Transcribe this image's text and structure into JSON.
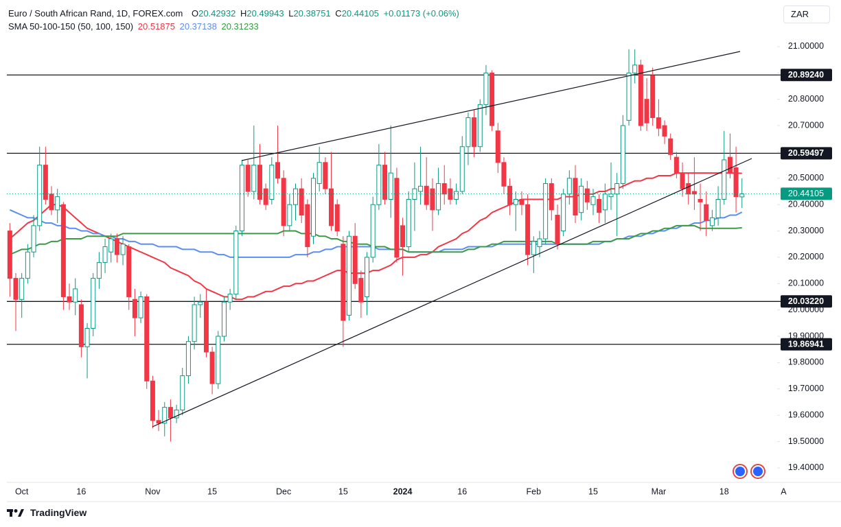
{
  "chart_data": {
    "type": "candlestick",
    "title": "Euro / South African Rand, 1D, FOREX.com",
    "ohlc_labels": [
      "O",
      "H",
      "L",
      "C"
    ],
    "change": "+0.01173 (+0.06%)",
    "indicator_label": "SMA 50-100-150 (50, 100, 150)",
    "currency": "ZAR",
    "footer": "TradingView",
    "categories": [
      null,
      null,
      "Oct",
      null,
      null,
      null,
      null,
      null,
      null,
      null,
      null,
      null,
      "16",
      null,
      null,
      null,
      null,
      null,
      null,
      null,
      null,
      null,
      null,
      null,
      "Nov",
      null,
      null,
      null,
      null,
      null,
      null,
      null,
      null,
      null,
      "15",
      null,
      null,
      null,
      null,
      null,
      null,
      null,
      null,
      null,
      null,
      null,
      "Dec",
      null,
      null,
      null,
      null,
      null,
      null,
      null,
      null,
      null,
      "15",
      null,
      null,
      null,
      null,
      null,
      null,
      null,
      null,
      null,
      "2024",
      null,
      null,
      null,
      null,
      null,
      null,
      null,
      null,
      null,
      "16",
      null,
      null,
      null,
      null,
      null,
      null,
      null,
      null,
      null,
      null,
      null,
      "Feb",
      null,
      null,
      null,
      null,
      null,
      null,
      null,
      null,
      null,
      "15",
      null,
      null,
      null,
      null,
      null,
      null,
      null,
      null,
      null,
      null,
      "Mar",
      null,
      null,
      null,
      null,
      null,
      null,
      null,
      null,
      null,
      null,
      "18",
      null,
      null,
      null,
      null,
      null,
      null,
      null,
      null,
      null,
      "A"
    ],
    "open": [
      20.3,
      20.12,
      20.04,
      20.12,
      20.22,
      20.32,
      20.55,
      20.44,
      20.38,
      20.4,
      20.05,
      20.03,
      20.02,
      19.86,
      19.93,
      20.12,
      20.18,
      20.22,
      20.27,
      20.21,
      20.24,
      20.04,
      19.97,
      20.05,
      19.73,
      19.58,
      19.57,
      19.63,
      19.59,
      19.62,
      19.75,
      19.88,
      20.02,
      20.03,
      19.84,
      19.72,
      19.9,
      20.03,
      20.06,
      20.3,
      20.55,
      20.45,
      20.55,
      20.46,
      20.42,
      20.56,
      20.5,
      20.32,
      20.4,
      20.46,
      20.4,
      20.28,
      20.48,
      20.56,
      20.46,
      20.4,
      20.25,
      19.98,
      20.28,
      20.12,
      20.05,
      20.2,
      20.4,
      20.55,
      20.42,
      20.5,
      20.32,
      20.24,
      20.42,
      20.45,
      20.47,
      20.46,
      20.38,
      20.48,
      20.46,
      20.42,
      20.45,
      20.62,
      20.73,
      20.62,
      20.78,
      20.9,
      20.68,
      20.56,
      20.47,
      20.4,
      20.42,
      20.4,
      20.21,
      20.24,
      20.27,
      20.48,
      20.36,
      20.3,
      20.44,
      20.5,
      20.37,
      20.46,
      20.4,
      20.42,
      20.38,
      20.43,
      20.44,
      20.48,
      20.72,
      20.9,
      20.93,
      20.8,
      20.89,
      20.73,
      20.7,
      20.65,
      20.58,
      20.52,
      20.48,
      20.45,
      20.42,
      20.4,
      20.32,
      20.35,
      20.42,
      20.58,
      20.54,
      20.42932,
      null,
      null,
      null,
      null,
      null,
      null,
      null
    ],
    "high": [
      20.33,
      20.14,
      20.14,
      20.25,
      20.36,
      20.62,
      20.62,
      20.47,
      20.46,
      20.41,
      20.1,
      20.12,
      20.04,
      19.95,
      20.14,
      20.22,
      20.27,
      20.29,
      20.29,
      20.28,
      20.25,
      20.08,
      20.07,
      20.06,
      19.75,
      19.62,
      19.65,
      19.66,
      19.64,
      19.78,
      19.9,
      20.05,
      20.06,
      20.08,
      19.86,
      19.92,
      20.05,
      20.08,
      20.32,
      20.57,
      20.57,
      20.7,
      20.63,
      20.48,
      20.58,
      20.7,
      20.53,
      20.44,
      20.48,
      20.5,
      20.42,
      20.52,
      20.62,
      20.58,
      20.6,
      20.42,
      20.28,
      20.3,
      20.33,
      20.15,
      20.22,
      20.43,
      20.63,
      20.6,
      20.7,
      20.54,
      20.35,
      20.45,
      20.56,
      20.62,
      20.58,
      20.5,
      20.54,
      20.55,
      20.5,
      20.48,
      20.66,
      20.75,
      20.76,
      20.8,
      20.93,
      20.91,
      20.71,
      20.58,
      20.5,
      20.45,
      20.45,
      20.44,
      20.28,
      20.3,
      20.5,
      20.5,
      20.4,
      20.46,
      20.53,
      20.55,
      20.5,
      20.49,
      20.46,
      20.44,
      20.48,
      20.56,
      20.52,
      20.74,
      20.99,
      20.99,
      20.95,
      20.88,
      20.92,
      20.8,
      20.72,
      20.67,
      20.6,
      20.56,
      20.52,
      20.58,
      20.48,
      20.45,
      20.38,
      20.47,
      20.68,
      20.67,
      20.62,
      20.49943,
      null,
      null,
      null,
      null,
      null,
      null,
      null
    ],
    "low": [
      20.05,
      19.92,
      19.97,
      20.1,
      20.2,
      20.3,
      20.4,
      20.36,
      20.33,
      20.0,
      20.0,
      19.98,
      19.82,
      19.74,
      19.9,
      20.08,
      20.14,
      20.18,
      20.18,
      20.17,
      20.0,
      19.9,
      19.95,
      19.7,
      19.55,
      19.54,
      19.52,
      19.5,
      19.57,
      19.6,
      19.72,
      19.85,
      19.97,
      19.82,
      19.68,
      19.7,
      19.88,
      20.0,
      20.04,
      20.28,
      20.43,
      20.42,
      20.4,
      20.38,
      20.4,
      20.48,
      20.28,
      20.3,
      20.34,
      20.33,
      20.2,
      20.25,
      20.45,
      20.44,
      20.3,
      20.28,
      19.86,
      19.96,
      20.08,
      19.97,
      19.98,
      20.18,
      20.38,
      20.4,
      20.35,
      20.18,
      20.13,
      20.22,
      20.3,
      20.4,
      20.38,
      20.3,
      20.36,
      20.4,
      20.4,
      20.4,
      20.44,
      20.55,
      20.58,
      20.6,
      20.74,
      20.68,
      20.52,
      20.44,
      20.36,
      20.3,
      20.36,
      20.17,
      20.14,
      20.2,
      20.25,
      20.34,
      20.23,
      20.28,
      20.4,
      20.33,
      20.34,
      20.38,
      20.36,
      20.33,
      20.33,
      20.38,
      20.28,
      20.46,
      20.7,
      20.86,
      20.68,
      20.68,
      20.7,
      20.66,
      20.63,
      20.57,
      20.5,
      20.43,
      20.4,
      20.38,
      20.3,
      20.28,
      20.3,
      20.32,
      20.4,
      20.5,
      20.37,
      20.38751,
      null,
      null,
      null,
      null,
      null,
      null,
      null
    ],
    "close": [
      20.12,
      20.04,
      20.12,
      20.22,
      20.32,
      20.55,
      20.42,
      20.38,
      20.43,
      20.05,
      20.03,
      20.08,
      19.86,
      19.93,
      20.12,
      20.18,
      20.24,
      20.27,
      20.21,
      20.25,
      20.05,
      19.97,
      20.05,
      19.73,
      19.58,
      19.57,
      19.63,
      19.59,
      19.62,
      19.75,
      19.88,
      20.02,
      20.03,
      19.84,
      19.72,
      19.9,
      20.03,
      20.06,
      20.3,
      20.55,
      20.45,
      20.55,
      20.42,
      20.4,
      20.55,
      20.5,
      20.32,
      20.4,
      20.46,
      20.36,
      20.24,
      20.5,
      20.56,
      20.46,
      20.32,
      20.3,
      19.96,
      20.28,
      20.1,
      20.03,
      20.2,
      20.4,
      20.55,
      20.42,
      20.52,
      20.2,
      20.24,
      20.42,
      20.46,
      20.47,
      20.4,
      20.38,
      20.48,
      20.44,
      20.42,
      20.45,
      20.62,
      20.73,
      20.62,
      20.78,
      20.9,
      20.7,
      20.56,
      20.47,
      20.4,
      20.42,
      20.4,
      20.21,
      20.26,
      20.27,
      20.48,
      20.38,
      20.25,
      20.44,
      20.5,
      20.36,
      20.47,
      20.41,
      20.43,
      20.37,
      20.44,
      20.44,
      20.48,
      20.7,
      20.9,
      20.93,
      20.7,
      20.71,
      20.73,
      20.69,
      20.66,
      20.59,
      20.52,
      20.46,
      20.44,
      20.44,
      20.41,
      20.34,
      20.35,
      20.42,
      20.57,
      20.52,
      20.43,
      20.44105,
      null,
      null,
      null,
      null,
      null,
      null,
      null
    ],
    "up_color": "#089981",
    "down_color": "#f23645",
    "series": [
      {
        "color": "#f23645",
        "values": [
          20.27,
          20.29,
          20.31,
          20.33,
          20.34,
          20.36,
          20.38,
          20.4,
          20.4,
          20.39,
          20.37,
          20.35,
          20.33,
          20.31,
          20.3,
          20.29,
          20.28,
          20.27,
          20.26,
          20.25,
          20.24,
          20.23,
          20.22,
          20.21,
          20.2,
          20.19,
          20.18,
          20.16,
          20.15,
          20.14,
          20.13,
          20.11,
          20.1,
          20.08,
          20.07,
          20.06,
          20.05,
          20.05,
          20.04,
          20.04,
          20.05,
          20.05,
          20.06,
          20.07,
          20.07,
          20.08,
          20.09,
          20.09,
          20.1,
          20.1,
          20.11,
          20.11,
          20.12,
          20.13,
          20.14,
          20.15,
          20.15,
          20.14,
          20.14,
          20.14,
          20.14,
          20.15,
          20.15,
          20.16,
          20.17,
          20.19,
          20.2,
          20.2,
          20.2,
          20.21,
          20.21,
          20.22,
          20.24,
          20.25,
          20.26,
          20.27,
          20.29,
          20.3,
          20.32,
          20.34,
          20.35,
          20.37,
          20.38,
          20.39,
          20.4,
          20.41,
          20.42,
          20.42,
          20.42,
          20.42,
          20.42,
          20.42,
          20.42,
          20.43,
          20.43,
          20.43,
          20.44,
          20.44,
          20.44,
          20.45,
          20.45,
          20.46,
          20.46,
          20.47,
          20.48,
          20.49,
          20.49,
          20.5,
          20.5,
          20.51,
          20.51,
          20.51,
          20.52,
          20.52,
          20.52,
          20.52,
          20.52,
          20.52,
          20.52,
          20.52,
          20.52,
          20.52,
          20.52,
          20.51875,
          null,
          null,
          null,
          null,
          null,
          null,
          null
        ]
      },
      {
        "color": "#5b8def",
        "values": [
          20.38,
          20.37,
          20.36,
          20.35,
          20.35,
          20.34,
          20.33,
          20.33,
          20.32,
          20.32,
          20.31,
          20.31,
          20.3,
          20.3,
          20.29,
          20.29,
          20.28,
          20.28,
          20.27,
          20.27,
          20.26,
          20.26,
          20.25,
          20.25,
          20.25,
          20.24,
          20.24,
          20.24,
          20.24,
          20.23,
          20.23,
          20.23,
          20.22,
          20.22,
          20.22,
          20.21,
          20.21,
          20.2,
          20.2,
          20.2,
          20.2,
          20.2,
          20.2,
          20.2,
          20.2,
          20.2,
          20.2,
          20.2,
          20.21,
          20.21,
          20.21,
          20.22,
          20.22,
          20.23,
          20.23,
          20.24,
          20.24,
          20.24,
          20.24,
          20.24,
          20.24,
          20.24,
          20.23,
          20.23,
          20.23,
          20.23,
          20.23,
          20.22,
          20.22,
          20.22,
          20.22,
          20.22,
          20.22,
          20.23,
          20.23,
          20.23,
          20.23,
          20.24,
          20.24,
          20.24,
          20.24,
          20.24,
          20.25,
          20.25,
          20.25,
          20.25,
          20.25,
          20.25,
          20.25,
          20.25,
          20.25,
          20.25,
          20.25,
          20.25,
          20.25,
          20.25,
          20.25,
          20.25,
          20.25,
          20.25,
          20.26,
          20.26,
          20.27,
          20.27,
          20.28,
          20.28,
          20.28,
          20.29,
          20.29,
          20.3,
          20.3,
          20.31,
          20.31,
          20.32,
          20.32,
          20.33,
          20.33,
          20.34,
          20.34,
          20.35,
          20.35,
          20.36,
          20.36,
          20.37138,
          null,
          null,
          null,
          null,
          null,
          null,
          null
        ]
      },
      {
        "color": "#3c9a46",
        "values": [
          20.21,
          20.22,
          20.23,
          20.23,
          20.24,
          20.25,
          20.25,
          20.26,
          20.26,
          20.27,
          20.27,
          20.27,
          20.27,
          20.28,
          20.28,
          20.28,
          20.28,
          20.28,
          20.28,
          20.29,
          20.29,
          20.29,
          20.29,
          20.29,
          20.29,
          20.29,
          20.29,
          20.29,
          20.29,
          20.29,
          20.29,
          20.29,
          20.29,
          20.29,
          20.29,
          20.29,
          20.29,
          20.29,
          20.29,
          20.29,
          20.29,
          20.29,
          20.29,
          20.29,
          20.29,
          20.29,
          20.3,
          20.3,
          20.3,
          20.29,
          20.29,
          20.29,
          20.28,
          20.28,
          20.27,
          20.27,
          20.26,
          20.26,
          20.25,
          20.25,
          20.25,
          20.24,
          20.24,
          20.24,
          20.23,
          20.23,
          20.23,
          20.22,
          20.22,
          20.22,
          20.22,
          20.22,
          20.22,
          20.22,
          20.22,
          20.22,
          20.22,
          20.23,
          20.23,
          20.24,
          20.24,
          20.25,
          20.25,
          20.26,
          20.26,
          20.26,
          20.26,
          20.26,
          20.26,
          20.26,
          20.26,
          20.26,
          20.25,
          20.25,
          20.25,
          20.25,
          20.25,
          20.25,
          20.26,
          20.26,
          20.26,
          20.26,
          20.27,
          20.27,
          20.27,
          20.28,
          20.29,
          20.29,
          20.3,
          20.3,
          20.31,
          20.31,
          20.32,
          20.32,
          20.32,
          20.32,
          20.31,
          20.31,
          20.31,
          20.31,
          20.31,
          20.31,
          20.31,
          20.31233,
          null,
          null,
          null,
          null,
          null,
          null,
          null
        ]
      }
    ],
    "levels": [
      {
        "value": 20.8924,
        "label": "20.89240"
      },
      {
        "value": 20.59497,
        "label": "20.59497"
      },
      {
        "value": 20.0322,
        "label": "20.03220"
      },
      {
        "value": 19.86941,
        "label": "19.86941"
      }
    ],
    "level_color": "#131722",
    "ylim": [
      19.345,
      21.164
    ],
    "yticks": [
      {
        "value": 19.4,
        "label": "19.40000"
      },
      {
        "value": 19.5,
        "label": "19.50000"
      },
      {
        "value": 19.6,
        "label": "19.60000"
      },
      {
        "value": 19.7,
        "label": "19.70000"
      },
      {
        "value": 19.8,
        "label": "19.80000"
      },
      {
        "value": 19.9,
        "label": "19.90000"
      },
      {
        "value": 20.0,
        "label": "20.00000"
      },
      {
        "value": 20.1,
        "label": "20.10000"
      },
      {
        "value": 20.2,
        "label": "20.20000"
      },
      {
        "value": 20.3,
        "label": "20.30000"
      },
      {
        "value": 20.4,
        "label": "20.40000"
      },
      {
        "value": 20.5,
        "label": "20.50000"
      },
      {
        "value": 20.6,
        "label": "20.60000"
      },
      {
        "value": 20.7,
        "label": "20.70000"
      },
      {
        "value": 20.8,
        "label": "20.80000"
      },
      {
        "value": 20.9,
        "label": "20.90000"
      },
      {
        "value": 21.0,
        "label": "21.00000"
      }
    ],
    "grid": false
  }
}
